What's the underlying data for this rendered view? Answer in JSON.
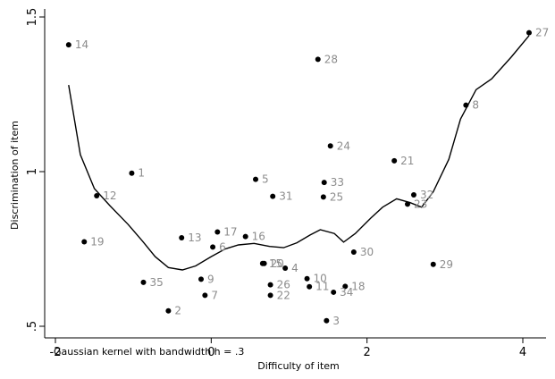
{
  "chart_data": {
    "type": "scatter",
    "title": "",
    "xlabel": "Difficulty of item",
    "ylabel": "Discrimination of item",
    "note": "Gaussian kernel with  bandwidth h = .3",
    "xlim": [
      -2.05,
      4.15
    ],
    "ylim": [
      0.5,
      1.5
    ],
    "xticks": [
      -2,
      0,
      2,
      4
    ],
    "xtick_labels": [
      "-2",
      "0",
      "2",
      "4"
    ],
    "yticks": [
      0.5,
      1,
      1.5
    ],
    "ytick_labels": [
      ".5",
      "1",
      "1.5"
    ],
    "grid": false,
    "legend": "none",
    "points": [
      {
        "label": "1",
        "x": -1.02,
        "y": 0.995
      },
      {
        "label": "2",
        "x": -0.55,
        "y": 0.55
      },
      {
        "label": "3",
        "x": 1.48,
        "y": 0.518
      },
      {
        "label": "4",
        "x": 0.95,
        "y": 0.688
      },
      {
        "label": "5",
        "x": 0.57,
        "y": 0.975
      },
      {
        "label": "6",
        "x": 0.02,
        "y": 0.756
      },
      {
        "label": "7",
        "x": -0.08,
        "y": 0.6
      },
      {
        "label": "8",
        "x": 3.27,
        "y": 1.215
      },
      {
        "label": "9",
        "x": -0.13,
        "y": 0.652
      },
      {
        "label": "10",
        "x": 1.23,
        "y": 0.654
      },
      {
        "label": "11",
        "x": 1.26,
        "y": 0.628
      },
      {
        "label": "12",
        "x": -1.47,
        "y": 0.922
      },
      {
        "label": "13",
        "x": -0.38,
        "y": 0.786
      },
      {
        "label": "14",
        "x": -1.83,
        "y": 1.41
      },
      {
        "label": "15",
        "x": 0.66,
        "y": 0.703
      },
      {
        "label": "16",
        "x": 0.44,
        "y": 0.79
      },
      {
        "label": "17",
        "x": 0.08,
        "y": 0.805
      },
      {
        "label": "18",
        "x": 1.72,
        "y": 0.629
      },
      {
        "label": "19",
        "x": -1.63,
        "y": 0.773
      },
      {
        "label": "20",
        "x": 0.68,
        "y": 0.703
      },
      {
        "label": "21",
        "x": 2.35,
        "y": 1.035
      },
      {
        "label": "22",
        "x": 0.76,
        "y": 0.6
      },
      {
        "label": "23",
        "x": 2.52,
        "y": 0.895
      },
      {
        "label": "24",
        "x": 1.53,
        "y": 1.083
      },
      {
        "label": "25",
        "x": 1.44,
        "y": 0.918
      },
      {
        "label": "26",
        "x": 0.76,
        "y": 0.634
      },
      {
        "label": "27",
        "x": 4.08,
        "y": 1.449
      },
      {
        "label": "28",
        "x": 1.37,
        "y": 1.363
      },
      {
        "label": "29",
        "x": 2.85,
        "y": 0.7
      },
      {
        "label": "30",
        "x": 1.83,
        "y": 0.74
      },
      {
        "label": "31",
        "x": 0.79,
        "y": 0.92
      },
      {
        "label": "32",
        "x": 2.6,
        "y": 0.925
      },
      {
        "label": "33",
        "x": 1.45,
        "y": 0.965
      },
      {
        "label": "34",
        "x": 1.57,
        "y": 0.61
      },
      {
        "label": "35",
        "x": -0.87,
        "y": 0.642
      }
    ],
    "smooth_line": [
      [
        -1.83,
        1.28
      ],
      [
        -1.68,
        1.055
      ],
      [
        -1.5,
        0.945
      ],
      [
        -1.3,
        0.89
      ],
      [
        -1.07,
        0.83
      ],
      [
        -0.88,
        0.775
      ],
      [
        -0.72,
        0.725
      ],
      [
        -0.55,
        0.69
      ],
      [
        -0.37,
        0.682
      ],
      [
        -0.2,
        0.695
      ],
      [
        0.0,
        0.725
      ],
      [
        0.18,
        0.75
      ],
      [
        0.35,
        0.763
      ],
      [
        0.55,
        0.768
      ],
      [
        0.75,
        0.758
      ],
      [
        0.93,
        0.754
      ],
      [
        1.1,
        0.77
      ],
      [
        1.27,
        0.795
      ],
      [
        1.4,
        0.812
      ],
      [
        1.58,
        0.8
      ],
      [
        1.7,
        0.772
      ],
      [
        1.85,
        0.8
      ],
      [
        2.05,
        0.85
      ],
      [
        2.2,
        0.885
      ],
      [
        2.38,
        0.912
      ],
      [
        2.55,
        0.9
      ],
      [
        2.7,
        0.885
      ],
      [
        2.85,
        0.935
      ],
      [
        3.05,
        1.04
      ],
      [
        3.2,
        1.17
      ],
      [
        3.4,
        1.265
      ],
      [
        3.6,
        1.3
      ],
      [
        3.85,
        1.37
      ],
      [
        4.08,
        1.44
      ]
    ]
  }
}
